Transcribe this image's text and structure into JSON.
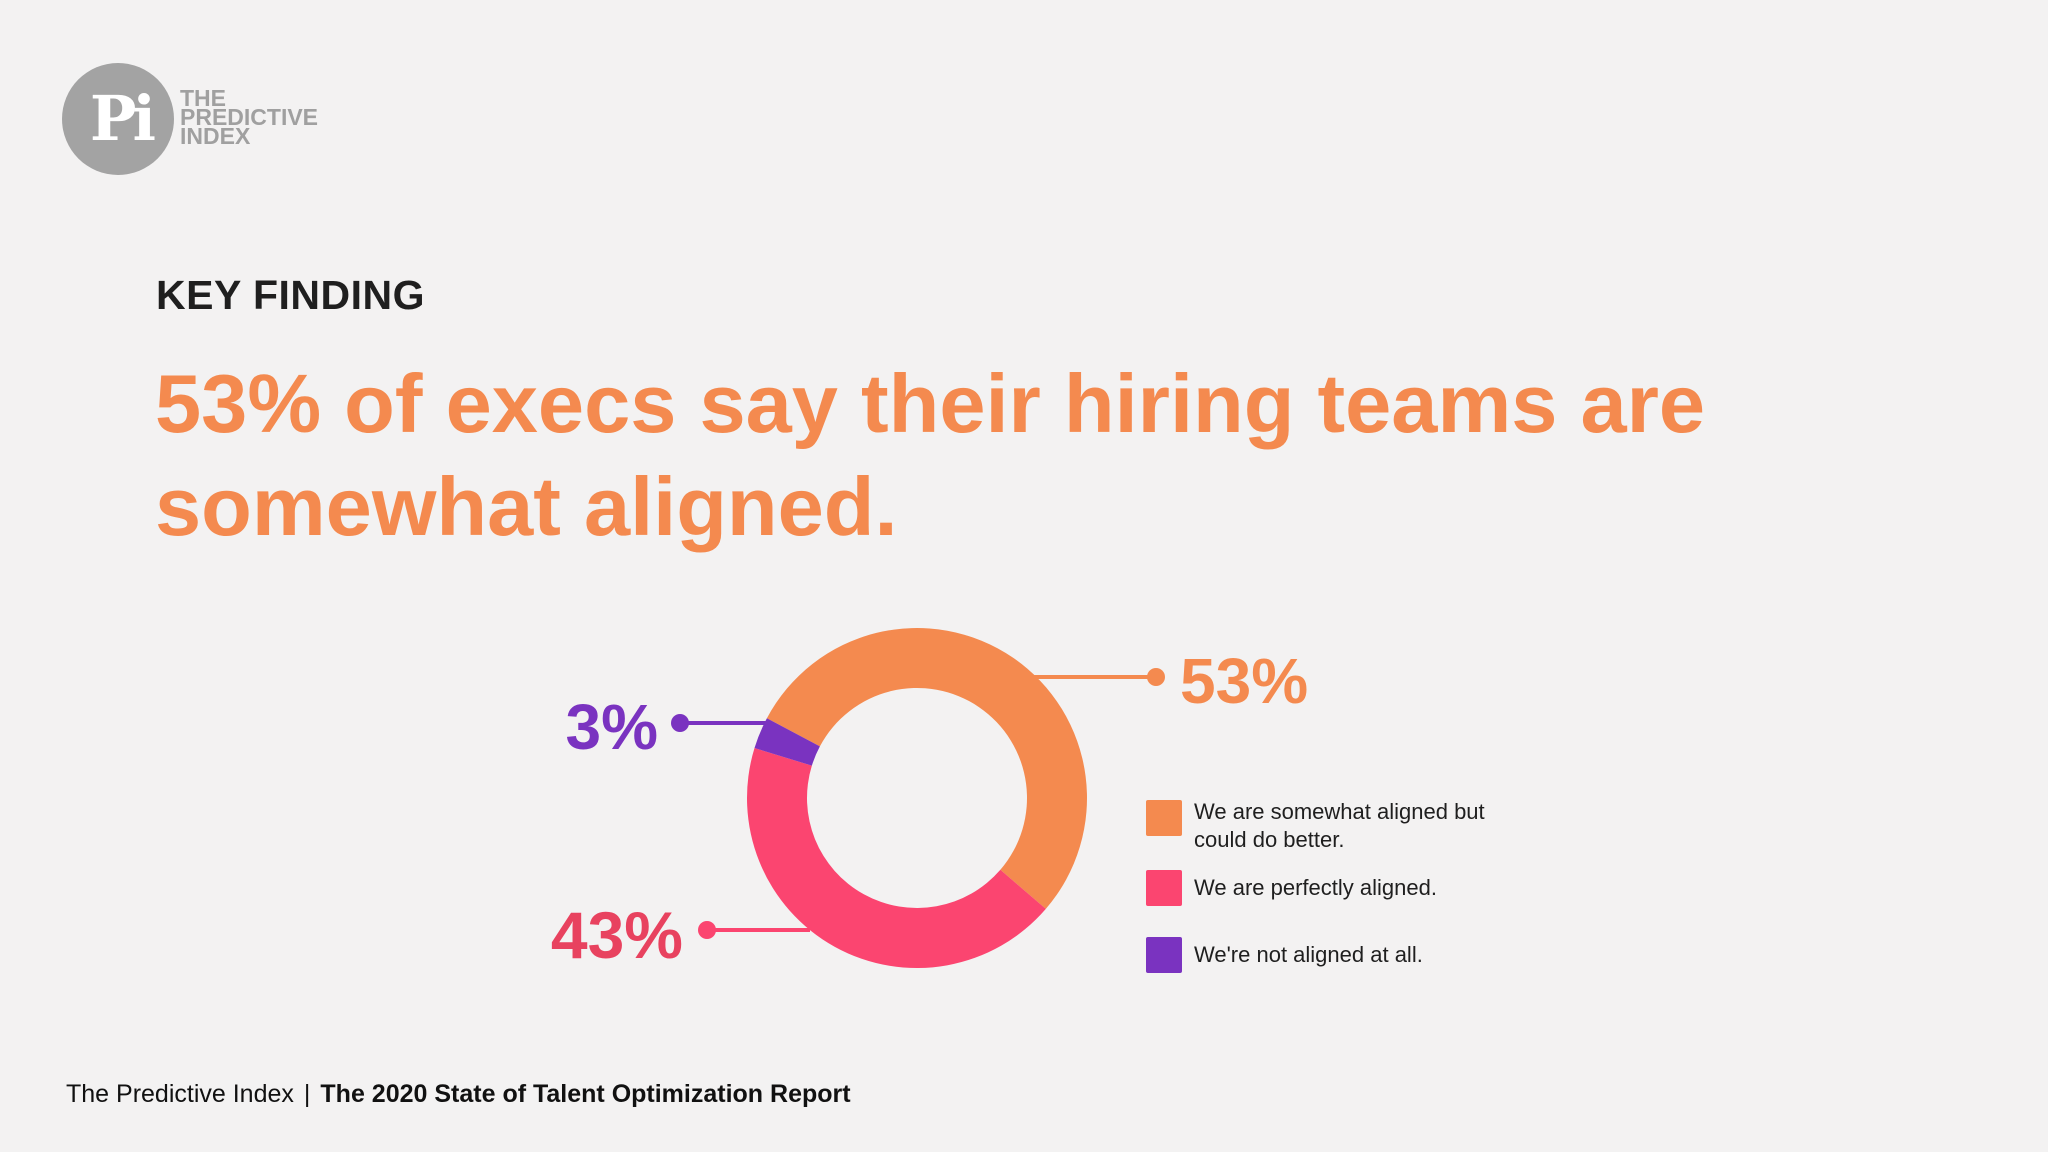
{
  "brand": {
    "logo_mark": "Pi",
    "logo_lines": [
      "THE",
      "PREDICTIVE",
      "INDEX"
    ]
  },
  "header": {
    "eyebrow": "KEY FINDING",
    "headline": "53% of execs say their hiring teams are somewhat aligned."
  },
  "chart_data": {
    "type": "pie",
    "title": "",
    "donut": true,
    "series": [
      {
        "name": "We are somewhat aligned but could do better.",
        "value": 53,
        "label": "53%",
        "color": "#f48a4f"
      },
      {
        "name": "We are perfectly aligned.",
        "value": 43,
        "label": "43%",
        "color": "#fb4570"
      },
      {
        "name": "We're not aligned at all.",
        "value": 3,
        "label": "3%",
        "color": "#7a33c0"
      }
    ],
    "legend_placement": "right"
  },
  "footer": {
    "org": "The Predictive Index",
    "separator": "|",
    "report": "The 2020 State of Talent Optimization Report"
  }
}
